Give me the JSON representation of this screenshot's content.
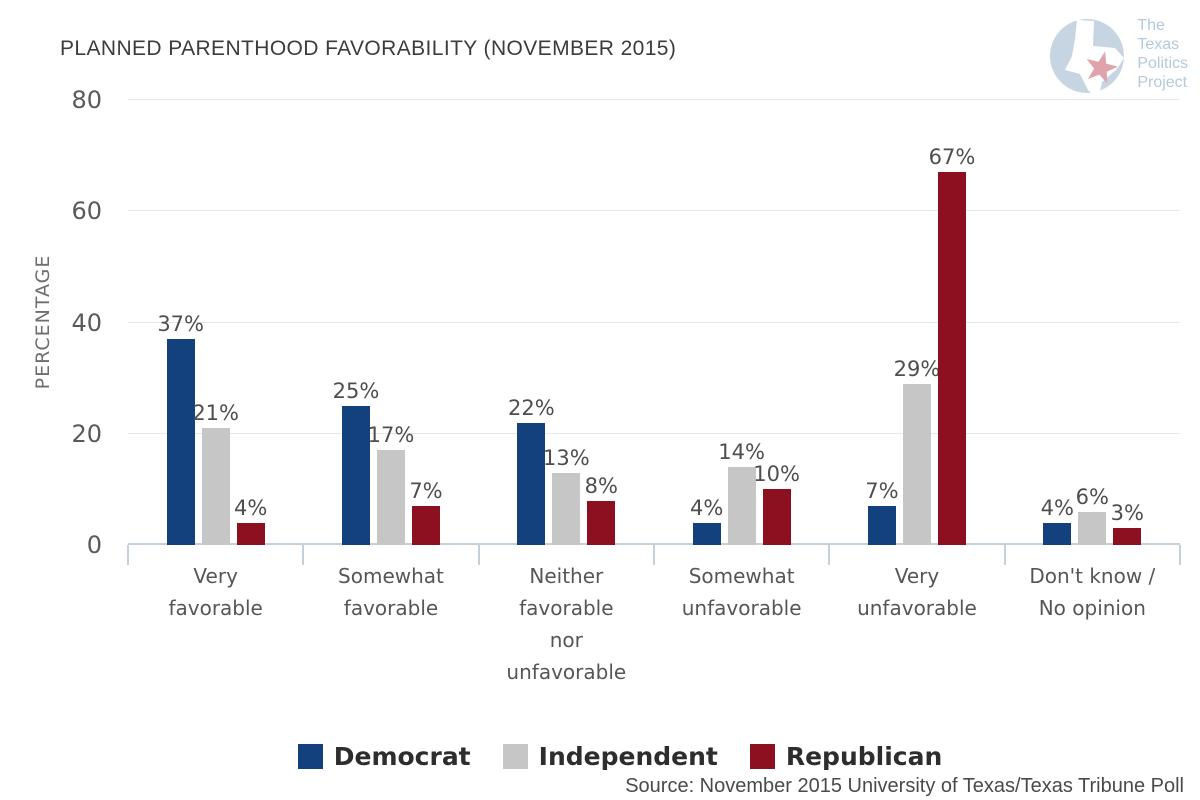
{
  "title": "PLANNED PARENTHOOD FAVORABILITY (NOVEMBER 2015)",
  "logo": {
    "lines": [
      "The",
      "Texas",
      "Politics",
      "Project"
    ],
    "circle_color": "#c7d5e3",
    "star_color": "#dfa3ac"
  },
  "source": "Source: November 2015 University of Texas/Texas Tribune Poll",
  "chart_data": {
    "type": "bar",
    "title": "PLANNED PARENTHOOD FAVORABILITY (NOVEMBER 2015)",
    "categories": [
      "Very favorable",
      "Somewhat favorable",
      "Neither favorable nor unfavorable",
      "Somewhat unfavorable",
      "Very unfavorable",
      "Don't know / No opinion"
    ],
    "series": [
      {
        "name": "Democrat",
        "color": "#12417e",
        "values": [
          37,
          25,
          22,
          4,
          7,
          4
        ]
      },
      {
        "name": "Independent",
        "color": "#c6c6c6",
        "values": [
          21,
          17,
          13,
          14,
          29,
          6
        ]
      },
      {
        "name": "Republican",
        "color": "#8d1021",
        "values": [
          4,
          7,
          8,
          10,
          67,
          3
        ]
      }
    ],
    "value_suffix": "%",
    "xlabel": "",
    "ylabel": "PERCENTAGE",
    "ylim": [
      0,
      80
    ],
    "yticks": [
      0,
      20,
      40,
      60,
      80
    ],
    "grid": true,
    "legend_position": "bottom",
    "colors": {
      "grid": "#e7e7e7",
      "axis": "#c4d0da",
      "data_label": "#4e4e4e"
    }
  }
}
